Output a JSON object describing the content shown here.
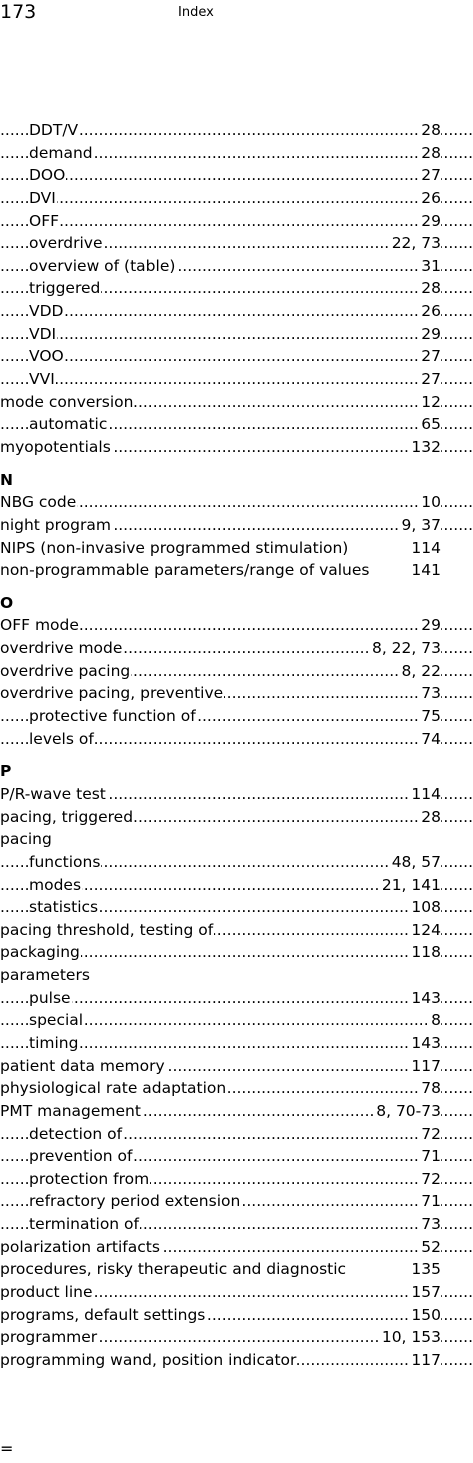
{
  "header": {
    "page_number": "173",
    "running_head": "Index"
  },
  "index": [
    {
      "term": "DDT/V",
      "pages": "28",
      "level": 2
    },
    {
      "term": "demand",
      "pages": "28",
      "level": 2
    },
    {
      "term": "DOO",
      "pages": "27",
      "level": 2
    },
    {
      "term": "DVI",
      "pages": "26",
      "level": 2
    },
    {
      "term": "OFF",
      "pages": "29",
      "level": 2
    },
    {
      "term": "overdrive",
      "pages": "22, 73",
      "level": 2
    },
    {
      "term": "overview of (table)",
      "pages": "31",
      "level": 2
    },
    {
      "term": "triggered",
      "pages": "28",
      "level": 2
    },
    {
      "term": "VDD",
      "pages": "26",
      "level": 2
    },
    {
      "term": "VDI",
      "pages": "29",
      "level": 2
    },
    {
      "term": "VOO",
      "pages": "27",
      "level": 2
    },
    {
      "term": "VVI",
      "pages": "27",
      "level": 2
    },
    {
      "term": "mode conversion",
      "pages": "12",
      "level": 1
    },
    {
      "term": "automatic",
      "pages": "65",
      "level": 2
    },
    {
      "term": "myopotentials",
      "pages": "132",
      "level": 1
    },
    {
      "heading": "N"
    },
    {
      "term": "NBG code",
      "pages": "10",
      "level": 1
    },
    {
      "term": "night program",
      "pages": "9, 37",
      "level": 1
    },
    {
      "term": "NIPS (non-invasive programmed stimulation)",
      "pages": "114",
      "level": 1,
      "nodots": true
    },
    {
      "term": "non-programmable parameters/range of values",
      "pages": "141",
      "level": 1,
      "nodots": true
    },
    {
      "heading": "O"
    },
    {
      "term": "OFF mode",
      "pages": "29",
      "level": 1
    },
    {
      "term": "overdrive mode",
      "pages": "8, 22, 73",
      "level": 1
    },
    {
      "term": "overdrive pacing",
      "pages": "8, 22",
      "level": 1
    },
    {
      "term": "overdrive pacing, preventive",
      "pages": "73",
      "level": 1
    },
    {
      "term": "protective function of",
      "pages": "75",
      "level": 2
    },
    {
      "term": "levels of",
      "pages": "74",
      "level": 2
    },
    {
      "heading": "P"
    },
    {
      "term": "P/R-wave test",
      "pages": "114",
      "level": 1
    },
    {
      "term": "pacing, triggered",
      "pages": "28",
      "level": 1
    },
    {
      "term": "pacing",
      "pages": "",
      "level": 1
    },
    {
      "term": "functions",
      "pages": "48, 57",
      "level": 2
    },
    {
      "term": "modes",
      "pages": "21, 141",
      "level": 2
    },
    {
      "term": "statistics",
      "pages": "108",
      "level": 2
    },
    {
      "term": "pacing threshold, testing of",
      "pages": "124",
      "level": 1
    },
    {
      "term": "packaging",
      "pages": "118",
      "level": 1
    },
    {
      "term": "parameters",
      "pages": "",
      "level": 1
    },
    {
      "term": "pulse",
      "pages": "143",
      "level": 2
    },
    {
      "term": "special",
      "pages": "8",
      "level": 2
    },
    {
      "term": "timing",
      "pages": "143",
      "level": 2
    },
    {
      "term": "patient data memory",
      "pages": "117",
      "level": 1
    },
    {
      "term": "physiological rate adaptation",
      "pages": "78",
      "level": 1
    },
    {
      "term": "PMT management",
      "pages": "8, 70-73",
      "level": 1
    },
    {
      "term": "detection of",
      "pages": "72",
      "level": 2
    },
    {
      "term": "prevention of",
      "pages": "71",
      "level": 2
    },
    {
      "term": "protection from",
      "pages": "72",
      "level": 2
    },
    {
      "term": "refractory period extension",
      "pages": "71",
      "level": 2
    },
    {
      "term": "termination of",
      "pages": "73",
      "level": 2
    },
    {
      "term": "polarization artifacts",
      "pages": "52",
      "level": 1
    },
    {
      "term": "procedures, risky therapeutic and diagnostic",
      "pages": "135",
      "level": 1,
      "nodots": true
    },
    {
      "term": "product line",
      "pages": "157",
      "level": 1
    },
    {
      "term": "programs, default settings",
      "pages": "150",
      "level": 1
    },
    {
      "term": "programmer",
      "pages": "10, 153",
      "level": 1
    },
    {
      "term": "programming wand, position indicator",
      "pages": "117",
      "level": 1
    }
  ],
  "footer": {
    "mark": "="
  }
}
